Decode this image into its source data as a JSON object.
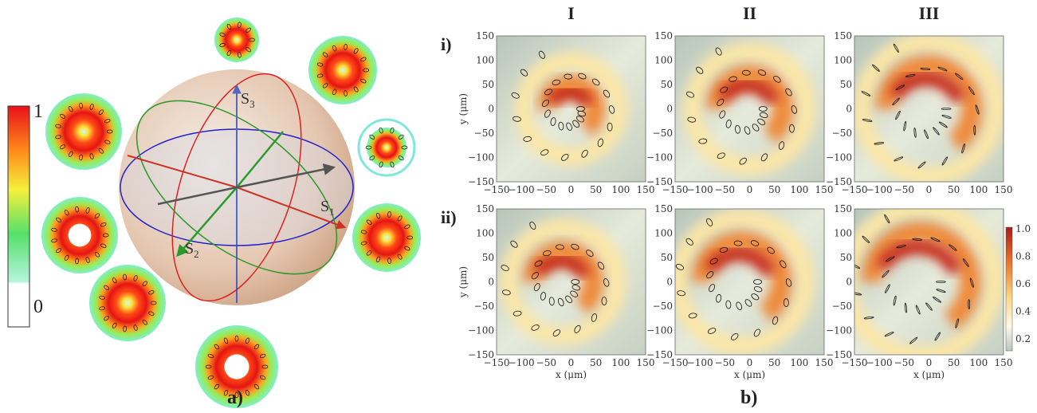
{
  "figure": {
    "colorbar_left": {
      "max": "1",
      "min": "0"
    },
    "sphere": {
      "s1": {
        "base": "S",
        "sub": "1"
      },
      "s2": {
        "base": "S",
        "sub": "2"
      },
      "s3": {
        "base": "S",
        "sub": "3"
      }
    },
    "panel_a_label": "a)",
    "panel_b_label": "b)",
    "columns": [
      "I",
      "II",
      "III"
    ],
    "rows": [
      "i)",
      "ii)"
    ],
    "ticks": [
      "−150",
      "−100",
      "−50",
      "0",
      "50",
      "100",
      "150"
    ],
    "x_label": "x (μm)",
    "y_label": "y (μm)",
    "colorbar_right": [
      "0.2",
      "0.4",
      "0.6",
      "0.8",
      "1.0"
    ]
  }
}
